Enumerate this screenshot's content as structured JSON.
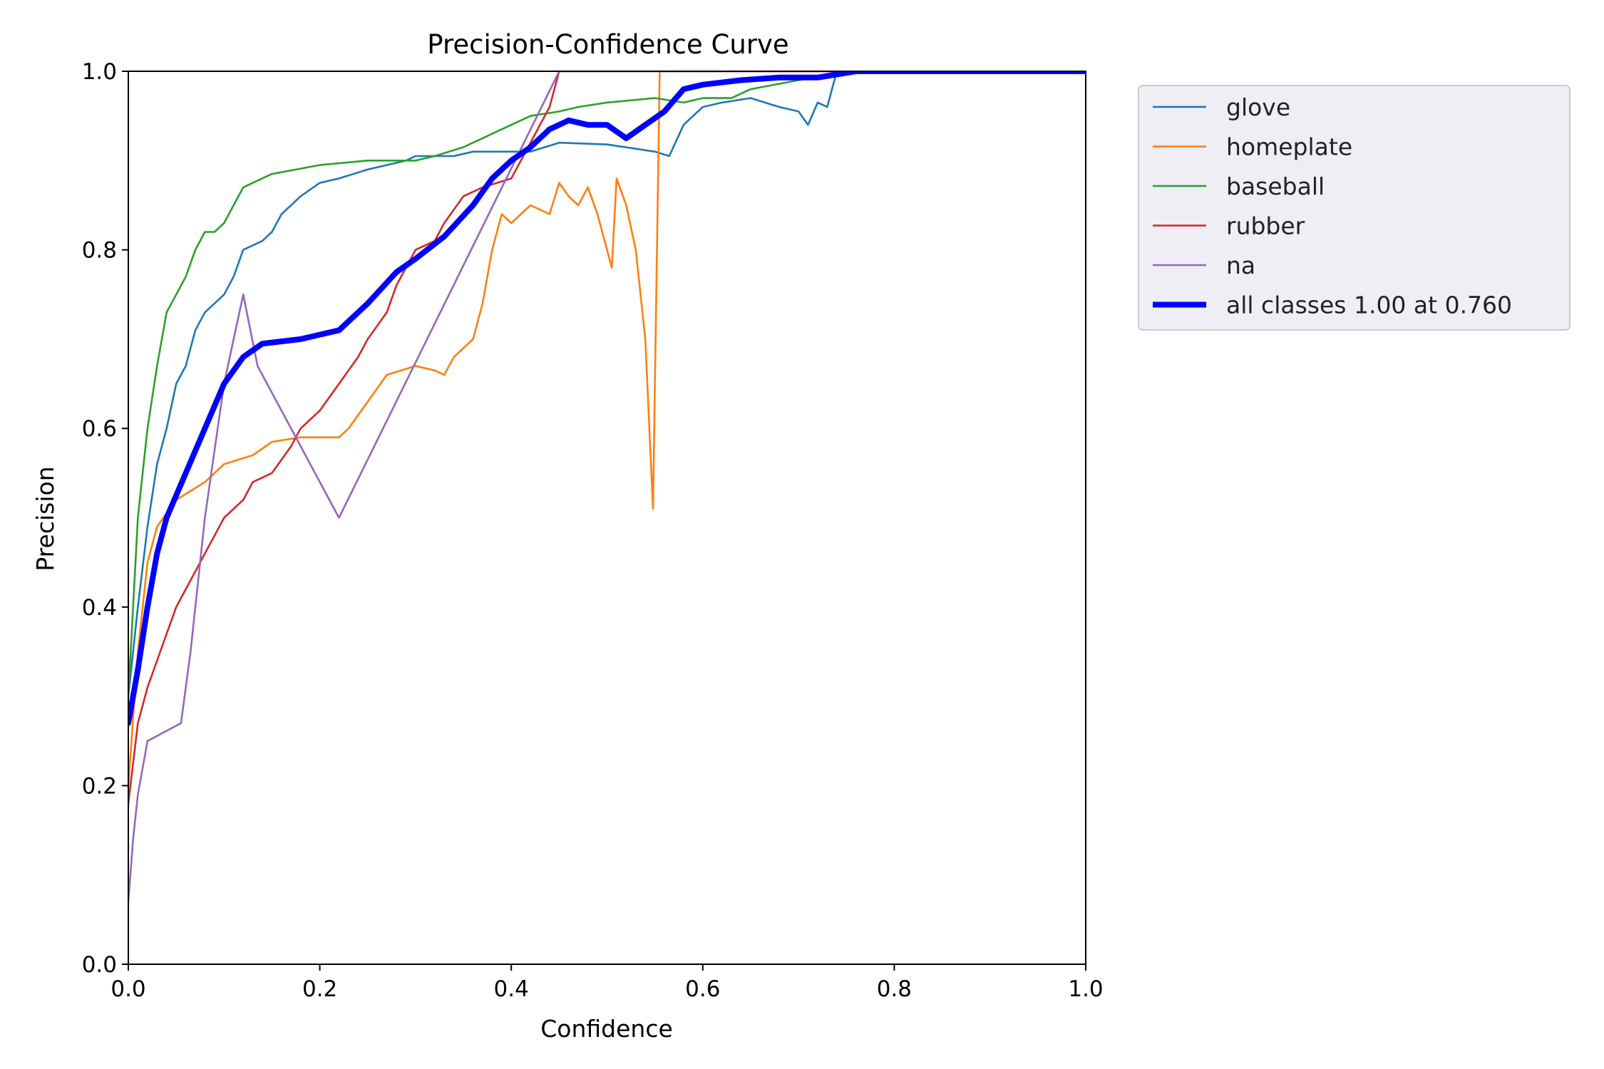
{
  "chart_data": {
    "type": "line",
    "title": "Precision-Confidence Curve",
    "xlabel": "Confidence",
    "ylabel": "Precision",
    "xlim": [
      0,
      1
    ],
    "ylim": [
      0,
      1
    ],
    "xticks": [
      "0.0",
      "0.2",
      "0.4",
      "0.6",
      "0.8",
      "1.0"
    ],
    "yticks": [
      "0.0",
      "0.2",
      "0.4",
      "0.6",
      "0.8",
      "1.0"
    ],
    "grid": false,
    "legend_position": "outside-top-right",
    "series": [
      {
        "name": "glove",
        "color": "#1f77b4",
        "width": "thin",
        "points": [
          [
            0.0,
            0.3
          ],
          [
            0.01,
            0.4
          ],
          [
            0.02,
            0.49
          ],
          [
            0.03,
            0.56
          ],
          [
            0.04,
            0.6
          ],
          [
            0.05,
            0.65
          ],
          [
            0.06,
            0.67
          ],
          [
            0.07,
            0.71
          ],
          [
            0.08,
            0.73
          ],
          [
            0.09,
            0.74
          ],
          [
            0.1,
            0.75
          ],
          [
            0.11,
            0.77
          ],
          [
            0.12,
            0.8
          ],
          [
            0.14,
            0.81
          ],
          [
            0.15,
            0.82
          ],
          [
            0.16,
            0.84
          ],
          [
            0.18,
            0.86
          ],
          [
            0.2,
            0.875
          ],
          [
            0.22,
            0.88
          ],
          [
            0.25,
            0.89
          ],
          [
            0.27,
            0.895
          ],
          [
            0.29,
            0.9
          ],
          [
            0.3,
            0.905
          ],
          [
            0.34,
            0.905
          ],
          [
            0.36,
            0.91
          ],
          [
            0.42,
            0.91
          ],
          [
            0.45,
            0.92
          ],
          [
            0.5,
            0.918
          ],
          [
            0.55,
            0.91
          ],
          [
            0.565,
            0.905
          ],
          [
            0.58,
            0.94
          ],
          [
            0.6,
            0.96
          ],
          [
            0.62,
            0.965
          ],
          [
            0.65,
            0.97
          ],
          [
            0.68,
            0.96
          ],
          [
            0.7,
            0.955
          ],
          [
            0.71,
            0.94
          ],
          [
            0.72,
            0.965
          ],
          [
            0.73,
            0.96
          ],
          [
            0.74,
            1.0
          ],
          [
            1.0,
            1.0
          ]
        ]
      },
      {
        "name": "homeplate",
        "color": "#ff7f0e",
        "width": "thin",
        "points": [
          [
            0.0,
            0.2
          ],
          [
            0.01,
            0.35
          ],
          [
            0.02,
            0.45
          ],
          [
            0.03,
            0.49
          ],
          [
            0.05,
            0.52
          ],
          [
            0.08,
            0.54
          ],
          [
            0.1,
            0.56
          ],
          [
            0.13,
            0.57
          ],
          [
            0.15,
            0.585
          ],
          [
            0.18,
            0.59
          ],
          [
            0.2,
            0.59
          ],
          [
            0.22,
            0.59
          ],
          [
            0.23,
            0.6
          ],
          [
            0.25,
            0.63
          ],
          [
            0.27,
            0.66
          ],
          [
            0.3,
            0.67
          ],
          [
            0.32,
            0.665
          ],
          [
            0.33,
            0.66
          ],
          [
            0.34,
            0.68
          ],
          [
            0.36,
            0.7
          ],
          [
            0.37,
            0.74
          ],
          [
            0.38,
            0.8
          ],
          [
            0.39,
            0.84
          ],
          [
            0.4,
            0.83
          ],
          [
            0.42,
            0.85
          ],
          [
            0.44,
            0.84
          ],
          [
            0.45,
            0.875
          ],
          [
            0.46,
            0.86
          ],
          [
            0.47,
            0.85
          ],
          [
            0.48,
            0.87
          ],
          [
            0.49,
            0.84
          ],
          [
            0.5,
            0.8
          ],
          [
            0.505,
            0.78
          ],
          [
            0.51,
            0.88
          ],
          [
            0.52,
            0.85
          ],
          [
            0.53,
            0.8
          ],
          [
            0.54,
            0.7
          ],
          [
            0.548,
            0.51
          ],
          [
            0.555,
            1.0
          ],
          [
            1.0,
            1.0
          ]
        ]
      },
      {
        "name": "baseball",
        "color": "#2ca02c",
        "width": "thin",
        "points": [
          [
            0.0,
            0.3
          ],
          [
            0.005,
            0.4
          ],
          [
            0.01,
            0.5
          ],
          [
            0.015,
            0.55
          ],
          [
            0.02,
            0.6
          ],
          [
            0.03,
            0.67
          ],
          [
            0.04,
            0.73
          ],
          [
            0.05,
            0.75
          ],
          [
            0.06,
            0.77
          ],
          [
            0.07,
            0.8
          ],
          [
            0.08,
            0.82
          ],
          [
            0.09,
            0.82
          ],
          [
            0.1,
            0.83
          ],
          [
            0.11,
            0.85
          ],
          [
            0.12,
            0.87
          ],
          [
            0.13,
            0.875
          ],
          [
            0.15,
            0.885
          ],
          [
            0.2,
            0.895
          ],
          [
            0.25,
            0.9
          ],
          [
            0.28,
            0.9
          ],
          [
            0.3,
            0.9
          ],
          [
            0.32,
            0.905
          ],
          [
            0.35,
            0.915
          ],
          [
            0.38,
            0.93
          ],
          [
            0.4,
            0.94
          ],
          [
            0.42,
            0.95
          ],
          [
            0.45,
            0.955
          ],
          [
            0.47,
            0.96
          ],
          [
            0.5,
            0.965
          ],
          [
            0.55,
            0.97
          ],
          [
            0.58,
            0.965
          ],
          [
            0.6,
            0.97
          ],
          [
            0.63,
            0.97
          ],
          [
            0.65,
            0.98
          ],
          [
            0.7,
            0.99
          ],
          [
            0.75,
            1.0
          ],
          [
            1.0,
            1.0
          ]
        ]
      },
      {
        "name": "rubber",
        "color": "#d62728",
        "width": "thin",
        "points": [
          [
            0.0,
            0.18
          ],
          [
            0.01,
            0.27
          ],
          [
            0.02,
            0.31
          ],
          [
            0.03,
            0.34
          ],
          [
            0.04,
            0.37
          ],
          [
            0.05,
            0.4
          ],
          [
            0.06,
            0.42
          ],
          [
            0.07,
            0.44
          ],
          [
            0.08,
            0.46
          ],
          [
            0.09,
            0.48
          ],
          [
            0.1,
            0.5
          ],
          [
            0.12,
            0.52
          ],
          [
            0.13,
            0.54
          ],
          [
            0.15,
            0.55
          ],
          [
            0.17,
            0.58
          ],
          [
            0.18,
            0.6
          ],
          [
            0.2,
            0.62
          ],
          [
            0.22,
            0.65
          ],
          [
            0.24,
            0.68
          ],
          [
            0.25,
            0.7
          ],
          [
            0.27,
            0.73
          ],
          [
            0.28,
            0.76
          ],
          [
            0.3,
            0.8
          ],
          [
            0.32,
            0.81
          ],
          [
            0.33,
            0.83
          ],
          [
            0.35,
            0.86
          ],
          [
            0.37,
            0.87
          ],
          [
            0.4,
            0.88
          ],
          [
            0.42,
            0.92
          ],
          [
            0.44,
            0.96
          ],
          [
            0.45,
            1.0
          ],
          [
            1.0,
            1.0
          ]
        ]
      },
      {
        "name": "na",
        "color": "#9467bd",
        "width": "thin",
        "points": [
          [
            0.0,
            0.07
          ],
          [
            0.005,
            0.14
          ],
          [
            0.01,
            0.19
          ],
          [
            0.02,
            0.25
          ],
          [
            0.055,
            0.27
          ],
          [
            0.065,
            0.35
          ],
          [
            0.08,
            0.5
          ],
          [
            0.1,
            0.65
          ],
          [
            0.12,
            0.75
          ],
          [
            0.135,
            0.67
          ],
          [
            0.22,
            0.5
          ],
          [
            0.45,
            1.0
          ],
          [
            1.0,
            1.0
          ]
        ]
      },
      {
        "name": "all classes 1.00 at 0.760",
        "color": "#0000ff",
        "width": "thick",
        "points": [
          [
            0.0,
            0.27
          ],
          [
            0.01,
            0.33
          ],
          [
            0.02,
            0.4
          ],
          [
            0.03,
            0.46
          ],
          [
            0.04,
            0.5
          ],
          [
            0.06,
            0.55
          ],
          [
            0.08,
            0.6
          ],
          [
            0.1,
            0.65
          ],
          [
            0.12,
            0.68
          ],
          [
            0.14,
            0.695
          ],
          [
            0.18,
            0.7
          ],
          [
            0.22,
            0.71
          ],
          [
            0.25,
            0.74
          ],
          [
            0.28,
            0.775
          ],
          [
            0.3,
            0.79
          ],
          [
            0.33,
            0.815
          ],
          [
            0.36,
            0.85
          ],
          [
            0.38,
            0.88
          ],
          [
            0.4,
            0.9
          ],
          [
            0.42,
            0.915
          ],
          [
            0.44,
            0.935
          ],
          [
            0.46,
            0.945
          ],
          [
            0.48,
            0.94
          ],
          [
            0.5,
            0.94
          ],
          [
            0.52,
            0.925
          ],
          [
            0.54,
            0.94
          ],
          [
            0.56,
            0.955
          ],
          [
            0.58,
            0.98
          ],
          [
            0.6,
            0.985
          ],
          [
            0.64,
            0.99
          ],
          [
            0.68,
            0.993
          ],
          [
            0.72,
            0.993
          ],
          [
            0.76,
            1.0
          ],
          [
            1.0,
            1.0
          ]
        ]
      }
    ]
  }
}
